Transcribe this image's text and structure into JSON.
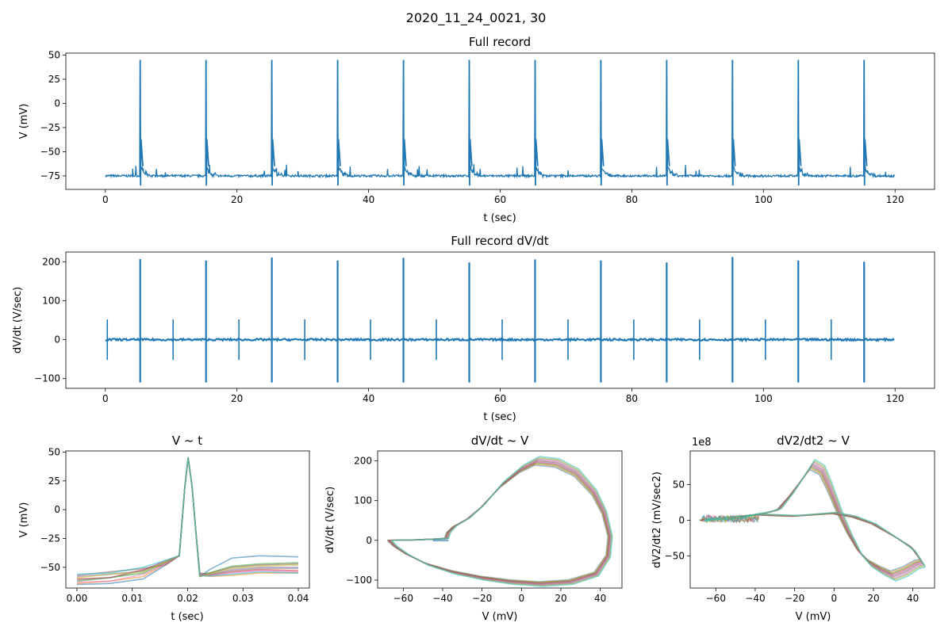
{
  "figure": {
    "suptitle": "2020_11_24_0021, 30"
  },
  "colors": {
    "trace": "#1f77b4",
    "overlay": [
      "#1f77b4",
      "#ff7f0e",
      "#2ca02c",
      "#d62728",
      "#9467bd",
      "#8c564b",
      "#e377c2",
      "#7f7f7f",
      "#bcbd22",
      "#17becf"
    ]
  },
  "chart_data": [
    {
      "id": "full",
      "type": "line",
      "title": "Full record",
      "xlabel": "t (sec)",
      "ylabel": "V (mV)",
      "xlim": [
        -6,
        126
      ],
      "ylim": [
        -89,
        52
      ],
      "xticks": [
        0,
        20,
        40,
        60,
        80,
        100,
        120
      ],
      "yticks": [
        -75,
        -50,
        -25,
        0,
        25,
        50
      ],
      "baseline": -75,
      "spike_times": [
        5.3,
        15.3,
        25.3,
        35.3,
        45.3,
        55.3,
        65.3,
        75.3,
        85.3,
        95.3,
        105.3,
        115.3
      ],
      "spike_peak": 45,
      "duration": 120
    },
    {
      "id": "dvdt",
      "type": "line",
      "title": "Full record dV/dt",
      "xlabel": "t (sec)",
      "ylabel": "dV/dt (V/sec)",
      "xlim": [
        -6,
        126
      ],
      "ylim": [
        -125,
        225
      ],
      "xticks": [
        0,
        20,
        40,
        60,
        80,
        100,
        120
      ],
      "yticks": [
        -100,
        0,
        100,
        200
      ],
      "spike_times": [
        5.3,
        15.3,
        25.3,
        35.3,
        45.3,
        55.3,
        65.3,
        75.3,
        85.3,
        95.3,
        105.3,
        115.3
      ],
      "spike_max": [
        207,
        203,
        211,
        203,
        210,
        198,
        206,
        203,
        198,
        212,
        203,
        200
      ],
      "spike_min": -110,
      "stim_times": [
        0.3,
        10.3,
        20.3,
        30.3,
        40.3,
        50.3,
        60.3,
        70.3,
        80.3,
        90.3,
        100.3,
        110.3
      ],
      "stim_amp": 52
    },
    {
      "id": "vt",
      "type": "line",
      "title": "V ~ t",
      "xlabel": "t (sec)",
      "ylabel": "V (mV)",
      "xlim": [
        -0.002,
        0.042
      ],
      "ylim": [
        -68,
        51
      ],
      "xticks": [
        0.0,
        0.01,
        0.02,
        0.03,
        0.04
      ],
      "xticklabels": [
        "0.00",
        "0.01",
        "0.02",
        "0.03",
        "0.04"
      ],
      "yticks": [
        -50,
        -25,
        0,
        25,
        50
      ],
      "start_v": [
        -65,
        -64,
        -62,
        -60,
        -58,
        -57,
        -63,
        -61,
        -59,
        -56
      ],
      "end_v": [
        -40,
        -55,
        -47,
        -52,
        -50,
        -48,
        -53,
        -51,
        -49,
        -54
      ],
      "peak_v": 45
    },
    {
      "id": "phase",
      "type": "line",
      "title": "dV/dt ~ V",
      "xlabel": "V (mV)",
      "ylabel": "dV/dt (V/sec)",
      "xlim": [
        -73,
        51
      ],
      "ylim": [
        -120,
        225
      ],
      "xticks": [
        -60,
        -40,
        -20,
        0,
        20,
        40
      ],
      "yticks": [
        -100,
        0,
        100,
        200
      ],
      "loop": [
        [
          -67,
          0
        ],
        [
          -55,
          1
        ],
        [
          -45,
          3
        ],
        [
          -38,
          5
        ],
        [
          -37,
          20
        ],
        [
          -34,
          35
        ],
        [
          -27,
          55
        ],
        [
          -20,
          85
        ],
        [
          -10,
          140
        ],
        [
          0,
          180
        ],
        [
          8,
          200
        ],
        [
          18,
          195
        ],
        [
          28,
          170
        ],
        [
          37,
          120
        ],
        [
          42,
          70
        ],
        [
          45,
          10
        ],
        [
          44,
          -40
        ],
        [
          38,
          -85
        ],
        [
          25,
          -105
        ],
        [
          10,
          -110
        ],
        [
          -5,
          -105
        ],
        [
          -20,
          -95
        ],
        [
          -35,
          -80
        ],
        [
          -48,
          -60
        ],
        [
          -58,
          -35
        ],
        [
          -64,
          -15
        ],
        [
          -67,
          0
        ]
      ],
      "bump": [
        [
          -45,
          0
        ],
        [
          -37,
          0
        ]
      ]
    },
    {
      "id": "d2",
      "type": "line",
      "title": "dV2/dt2 ~ V",
      "xlabel": "V (mV)",
      "ylabel": "dV2/dt2 (mV/sec2)",
      "offset_text": "1e8",
      "xlim": [
        -73,
        51
      ],
      "ylim": [
        -95,
        97
      ],
      "xticks": [
        -60,
        -40,
        -20,
        0,
        20,
        40
      ],
      "yticks": [
        -50,
        0,
        50
      ],
      "upstroke": [
        [
          -67,
          0
        ],
        [
          -58,
          1
        ],
        [
          -48,
          3
        ],
        [
          -40,
          8
        ],
        [
          -35,
          10
        ],
        [
          -28,
          15
        ],
        [
          -22,
          35
        ],
        [
          -16,
          58
        ],
        [
          -11,
          78
        ],
        [
          -6,
          70
        ],
        [
          -2,
          45
        ],
        [
          3,
          10
        ],
        [
          8,
          -20
        ],
        [
          13,
          -45
        ],
        [
          18,
          -60
        ],
        [
          24,
          -70
        ],
        [
          30,
          -78
        ],
        [
          36,
          -72
        ],
        [
          42,
          -62
        ],
        [
          45,
          -60
        ]
      ],
      "downstroke": [
        [
          45,
          -60
        ],
        [
          40,
          -40
        ],
        [
          32,
          -25
        ],
        [
          20,
          -5
        ],
        [
          10,
          5
        ],
        [
          0,
          10
        ],
        [
          -10,
          8
        ],
        [
          -20,
          6
        ],
        [
          -30,
          7
        ],
        [
          -38,
          8
        ],
        [
          -46,
          6
        ],
        [
          -55,
          4
        ],
        [
          -62,
          2
        ],
        [
          -67,
          0
        ]
      ],
      "noise_span": [
        -67,
        -38
      ]
    }
  ]
}
